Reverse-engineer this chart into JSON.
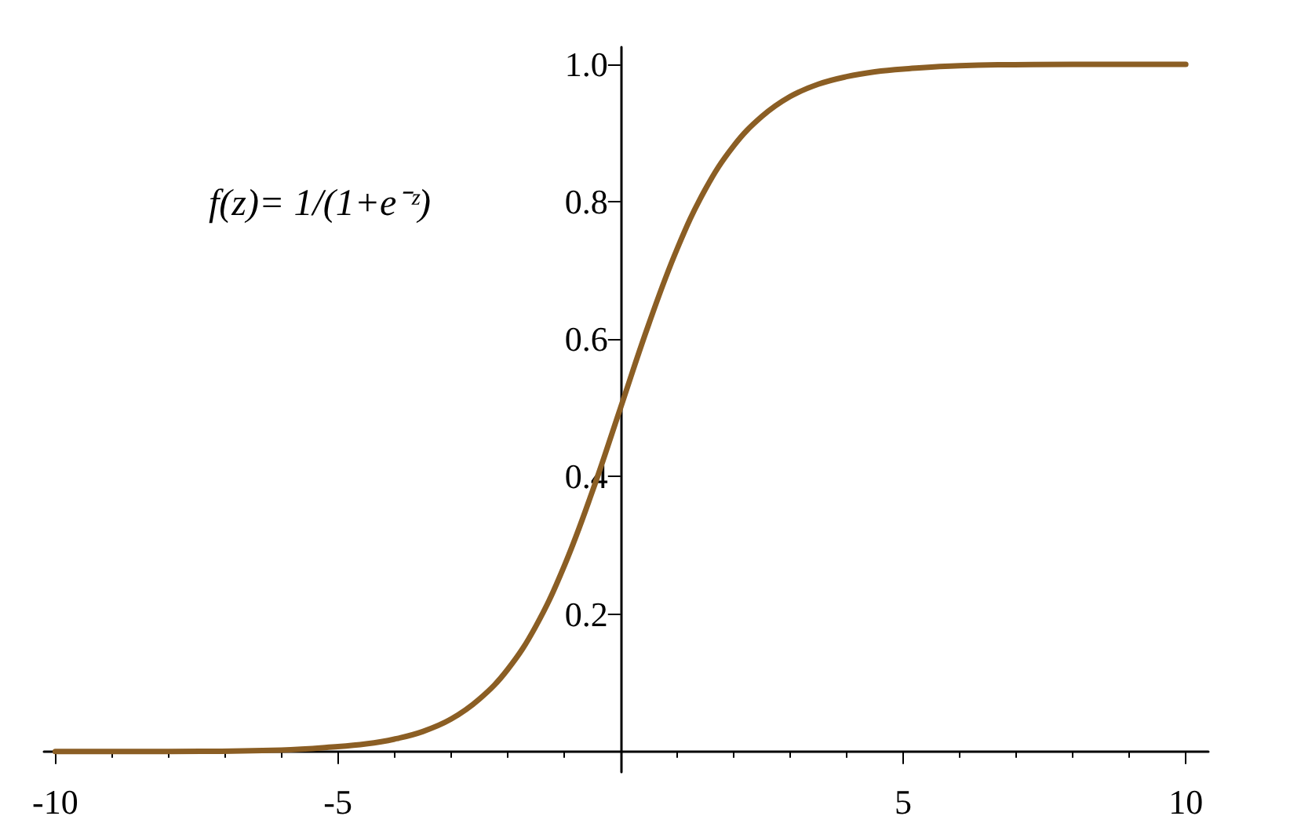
{
  "chart_data": {
    "type": "line",
    "x": [
      -10,
      -8,
      -6,
      -5,
      -4.5,
      -4,
      -3.5,
      -3,
      -2.5,
      -2,
      -1.5,
      -1,
      -0.5,
      0,
      0.5,
      1,
      1.5,
      2,
      2.5,
      3,
      3.5,
      4,
      4.5,
      5,
      6,
      8,
      10
    ],
    "series": [
      {
        "color": "#8b5e24",
        "values": [
          0,
          0,
          0.002,
          0.007,
          0.011,
          0.018,
          0.029,
          0.047,
          0.076,
          0.119,
          0.182,
          0.269,
          0.378,
          0.5,
          0.622,
          0.731,
          0.818,
          0.881,
          0.924,
          0.953,
          0.971,
          0.982,
          0.989,
          0.993,
          0.998,
          1,
          1
        ]
      }
    ],
    "xlim": [
      -10.2,
      10.4
    ],
    "ylim": [
      -0.03,
      1.025
    ],
    "xticks": [
      -10,
      -5,
      5,
      10
    ],
    "yticks": [
      0.2,
      0.4,
      0.6,
      0.8,
      {
        "value": 1,
        "label": "1.0"
      }
    ],
    "annotations": [
      "f(z)= 1/(1+e⁻ᶻ)"
    ],
    "grid": false,
    "marker": "none",
    "line_style": "solid"
  }
}
